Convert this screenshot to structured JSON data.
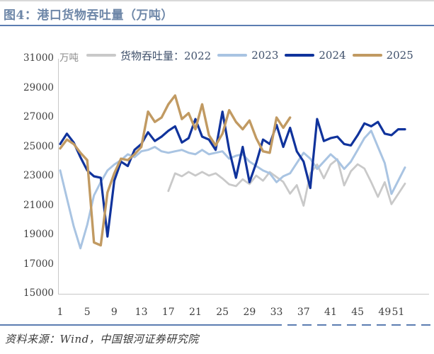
{
  "figure": {
    "title": "图4：港口货物吞吐量（万吨）",
    "source": "资料来源：Wind，中国银河证券研究院"
  },
  "legend": {
    "items": [
      {
        "label": "货物吞吐量：2022",
        "color": "#c9c9c9"
      },
      {
        "label": "2023",
        "color": "#a9c4e2"
      },
      {
        "label": "2024",
        "color": "#10339c"
      },
      {
        "label": "2025",
        "color": "#c19a62"
      }
    ]
  },
  "chart_data": {
    "type": "line",
    "title": "港口货物吞吐量（万吨）",
    "ylabel_unit": "万吨",
    "xlabel": "",
    "x_ticks": [
      1,
      5,
      9,
      13,
      17,
      21,
      25,
      29,
      33,
      37,
      41,
      45,
      49,
      51
    ],
    "x_range_weeks": [
      1,
      52
    ],
    "y_ticks": [
      31000,
      29000,
      27000,
      25000,
      23000,
      21000,
      19000,
      17000,
      15000
    ],
    "ylim": [
      15000,
      31000
    ],
    "grid": false,
    "legend_position": "top",
    "series": [
      {
        "name": "2022",
        "legend_label": "货物吞吐量：2022",
        "color": "#c9c9c9",
        "stroke_width": 2.8,
        "start_week": 17,
        "values": [
          22000,
          23200,
          23000,
          23300,
          23050,
          23300,
          23050,
          23200,
          22850,
          22450,
          22330,
          22800,
          22470,
          23050,
          22700,
          23290,
          22950,
          22620,
          21820,
          22400,
          21000,
          23200,
          23800,
          22860,
          23800,
          24160,
          22380,
          23340,
          23820,
          23530,
          22600,
          21600,
          22600,
          21100,
          21800,
          22500
        ]
      },
      {
        "name": "2023",
        "legend_label": "2023",
        "color": "#a9c4e2",
        "stroke_width": 3,
        "start_week": 1,
        "values": [
          23400,
          21500,
          19600,
          18100,
          19700,
          21700,
          22600,
          23400,
          23800,
          24100,
          24500,
          24300,
          24700,
          24800,
          25000,
          24700,
          24600,
          24700,
          24800,
          24600,
          24500,
          24800,
          24500,
          24600,
          24700,
          24200,
          24400,
          24500,
          24000,
          23700,
          23400,
          23200,
          22600,
          23000,
          23200,
          23900,
          24600,
          24200,
          23500,
          24000,
          24500,
          24100,
          23500,
          24000,
          24800,
          25600,
          26100,
          25000,
          23900,
          21800,
          22700,
          23600
        ]
      },
      {
        "name": "2024",
        "legend_label": "2024",
        "color": "#10339c",
        "stroke_width": 3.2,
        "start_week": 1,
        "values": [
          25200,
          25900,
          25300,
          24300,
          23400,
          23000,
          22900,
          18900,
          22700,
          24000,
          23700,
          24800,
          25200,
          26000,
          25400,
          25700,
          26100,
          26400,
          25300,
          25600,
          26900,
          25700,
          25500,
          24800,
          27400,
          24800,
          22900,
          25000,
          22600,
          23900,
          25500,
          25200,
          26500,
          25000,
          26300,
          24700,
          24000,
          22200,
          26900,
          25400,
          25600,
          25700,
          25200,
          25100,
          25800,
          26600,
          26400,
          26700,
          25900,
          25800,
          26200,
          26200
        ]
      },
      {
        "name": "2025",
        "legend_label": "2025",
        "color": "#c19a62",
        "stroke_width": 3.4,
        "start_week": 1,
        "values": [
          24900,
          25500,
          25200,
          24600,
          24100,
          18500,
          18300,
          21900,
          23200,
          24200,
          24100,
          24500,
          25000,
          27400,
          26700,
          27000,
          27900,
          28500,
          26900,
          27300,
          26200,
          27900,
          25800,
          25100,
          25900,
          27500,
          26700,
          26200,
          26800,
          25600,
          24700,
          24600,
          27000,
          26300,
          27000
        ]
      }
    ]
  }
}
